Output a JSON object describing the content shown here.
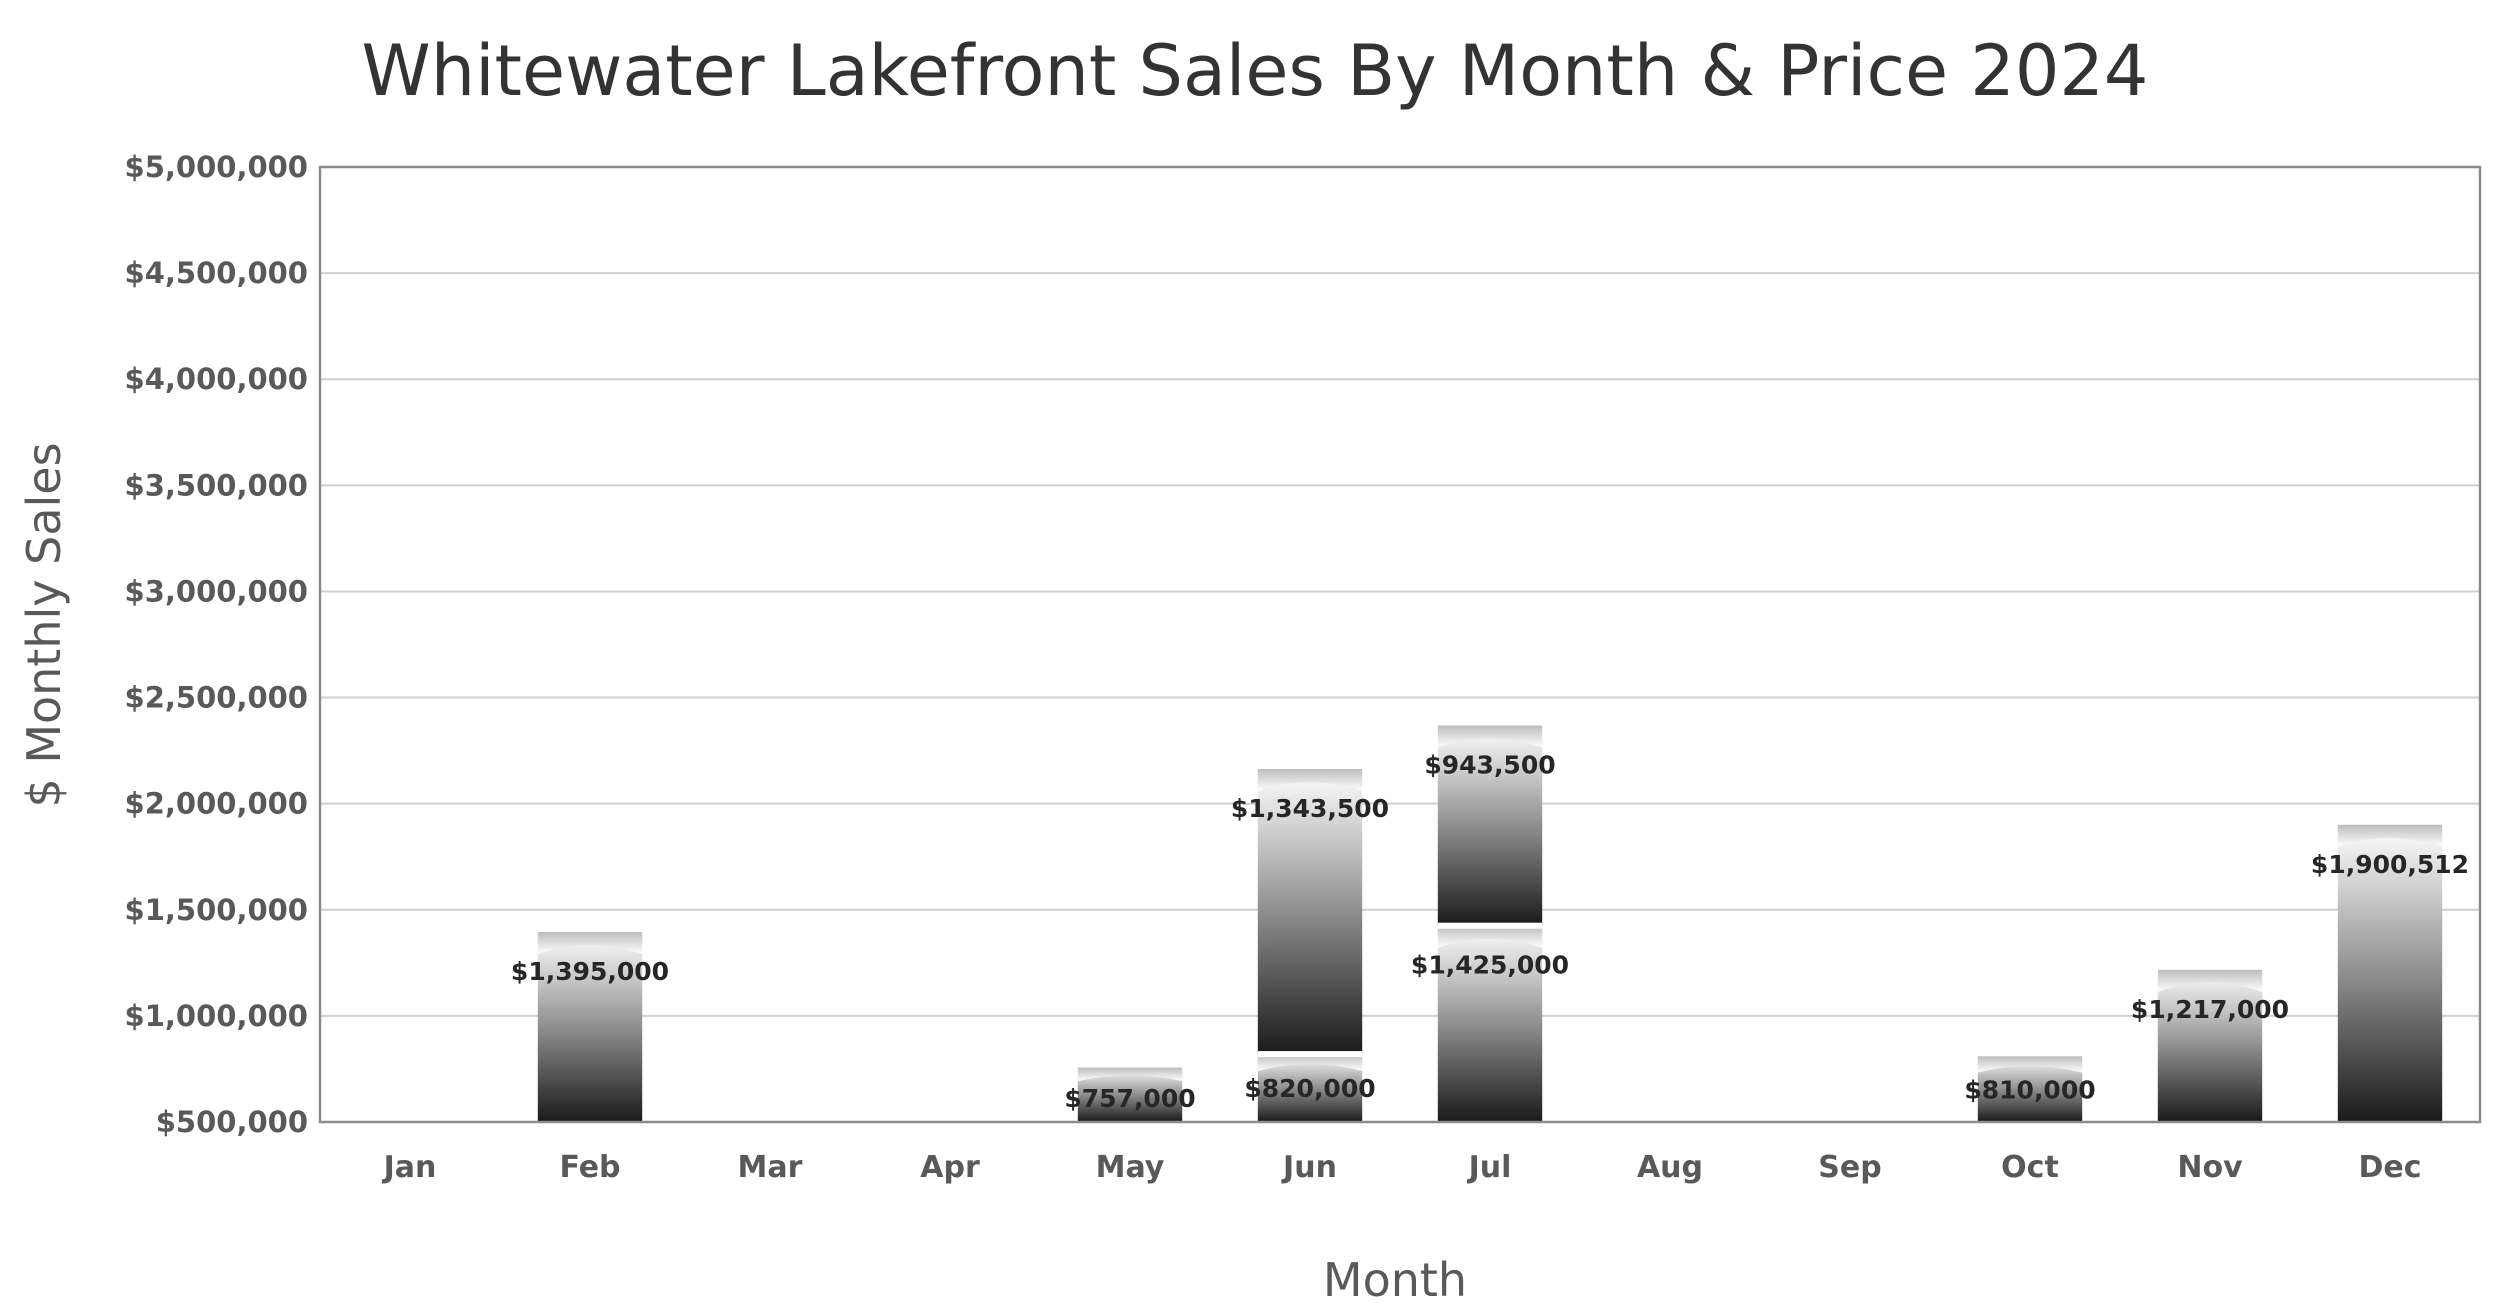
{
  "chart_data": {
    "type": "bar",
    "stacked": true,
    "title": "Whitewater Lakefront Sales By Month & Price 2024",
    "xlabel": "Month",
    "ylabel": "$ Monthly Sales",
    "ylim": [
      500000,
      5000000
    ],
    "ytick_step": 500000,
    "yticks": [
      "$500,000",
      "$1,000,000",
      "$1,500,000",
      "$2,000,000",
      "$2,500,000",
      "$3,000,000",
      "$3,500,000",
      "$4,000,000",
      "$4,500,000",
      "$5,000,000"
    ],
    "grid": true,
    "legend": "none",
    "categories": [
      "Jan",
      "Feb",
      "Mar",
      "Apr",
      "May",
      "Jun",
      "Jul",
      "Aug",
      "Sep",
      "Oct",
      "Nov",
      "Dec"
    ],
    "stacks": [
      [],
      [
        {
          "value": 1395000,
          "label": "$1,395,000"
        }
      ],
      [],
      [],
      [
        {
          "value": 757000,
          "label": "$757,000"
        }
      ],
      [
        {
          "value": 820000,
          "label": "$820,000"
        },
        {
          "value": 1343500,
          "label": "$1,343,500"
        }
      ],
      [
        {
          "value": 1425000,
          "label": "$1,425,000"
        },
        {
          "value": 943500,
          "label": "$943,500"
        }
      ],
      [],
      [],
      [
        {
          "value": 810000,
          "label": "$810,000"
        }
      ],
      [
        {
          "value": 1217000,
          "label": "$1,217,000"
        }
      ],
      [
        {
          "value": 1900512,
          "label": "$1,900,512"
        }
      ]
    ],
    "colors": {
      "bar_dark": "#1a1a1a",
      "bar_light": "#ffffff",
      "grid": "#cfcfcf",
      "frame": "#8c8c8c",
      "text": "#595959"
    }
  }
}
